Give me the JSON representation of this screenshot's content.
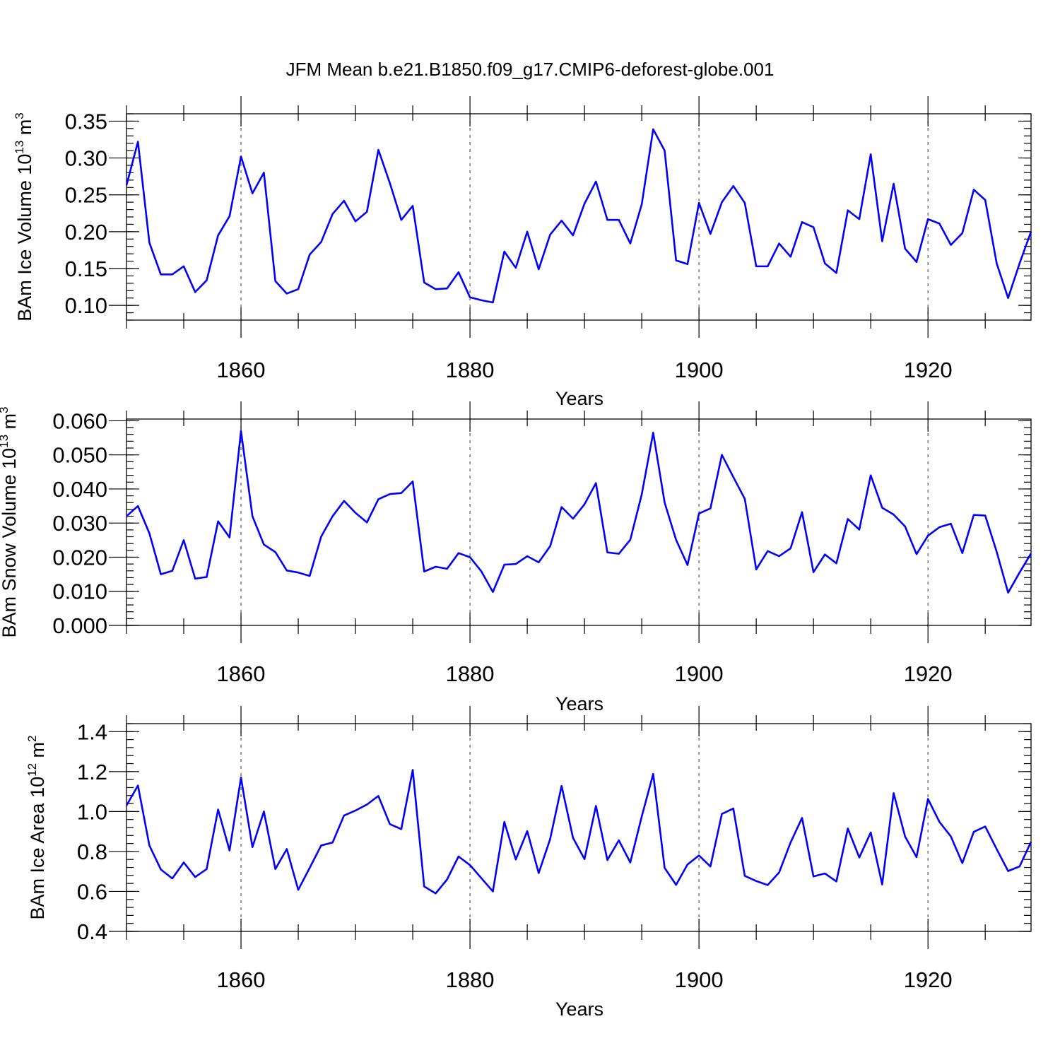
{
  "title": "JFM Mean b.e21.B1850.f09_g17.CMIP6-deforest-globe.001",
  "colors": {
    "line": "#0000ff",
    "axis": "#000000"
  },
  "chart_data": [
    {
      "type": "line",
      "name": "ice-volume",
      "ylabel_main": "BAm Ice Volume 10",
      "ylabel_exp": "13",
      "ylabel_unit": " m",
      "ylabel_unit_exp": "3",
      "xlabel": "Years",
      "xlim": [
        1850,
        1929
      ],
      "ylim": [
        0.08,
        0.36
      ],
      "xticks": [
        1860,
        1880,
        1900,
        1920
      ],
      "xtick_labels": [
        "1860",
        "1880",
        "1900",
        "1920"
      ],
      "yticks": [
        0.1,
        0.15,
        0.2,
        0.25,
        0.3,
        0.35
      ],
      "ytick_labels": [
        "0.10",
        "0.15",
        "0.20",
        "0.25",
        "0.30",
        "0.35"
      ],
      "yminor_step": 0.01,
      "grid_x": true,
      "x_start": 1850,
      "values": [
        0.263,
        0.322,
        0.185,
        0.142,
        0.142,
        0.153,
        0.118,
        0.134,
        0.195,
        0.221,
        0.302,
        0.252,
        0.28,
        0.133,
        0.116,
        0.122,
        0.169,
        0.186,
        0.224,
        0.242,
        0.214,
        0.227,
        0.311,
        0.266,
        0.216,
        0.235,
        0.131,
        0.122,
        0.123,
        0.145,
        0.111,
        0.107,
        0.104,
        0.173,
        0.151,
        0.2,
        0.149,
        0.196,
        0.215,
        0.195,
        0.238,
        0.268,
        0.216,
        0.216,
        0.184,
        0.237,
        0.339,
        0.31,
        0.161,
        0.156,
        0.239,
        0.197,
        0.24,
        0.262,
        0.239,
        0.153,
        0.153,
        0.184,
        0.166,
        0.213,
        0.206,
        0.157,
        0.144,
        0.229,
        0.217,
        0.305,
        0.187,
        0.265,
        0.177,
        0.159,
        0.217,
        0.211,
        0.182,
        0.198,
        0.257,
        0.243,
        0.157,
        0.11,
        0.157,
        0.2
      ]
    },
    {
      "type": "line",
      "name": "snow-volume",
      "ylabel_main": "BAm Snow Volume 10",
      "ylabel_exp": "13",
      "ylabel_unit": " m",
      "ylabel_unit_exp": "3",
      "xlabel": "Years",
      "xlim": [
        1850,
        1929
      ],
      "ylim": [
        0.0,
        0.0605
      ],
      "xticks": [
        1860,
        1880,
        1900,
        1920
      ],
      "xtick_labels": [
        "1860",
        "1880",
        "1900",
        "1920"
      ],
      "yticks": [
        0.0,
        0.01,
        0.02,
        0.03,
        0.04,
        0.05,
        0.06
      ],
      "ytick_labels": [
        "0.000",
        "0.010",
        "0.020",
        "0.030",
        "0.040",
        "0.050",
        "0.060"
      ],
      "yminor_step": 0.002,
      "grid_x": true,
      "x_start": 1850,
      "values": [
        0.032,
        0.035,
        0.027,
        0.015,
        0.016,
        0.025,
        0.0137,
        0.0142,
        0.0305,
        0.0258,
        0.057,
        0.032,
        0.0237,
        0.0215,
        0.0161,
        0.0155,
        0.0145,
        0.026,
        0.032,
        0.0365,
        0.033,
        0.0302,
        0.037,
        0.0385,
        0.0388,
        0.0422,
        0.0158,
        0.0172,
        0.0166,
        0.0212,
        0.02,
        0.0158,
        0.0098,
        0.0178,
        0.018,
        0.0203,
        0.0185,
        0.0232,
        0.0347,
        0.0313,
        0.0355,
        0.0417,
        0.0214,
        0.021,
        0.0251,
        0.0384,
        0.0565,
        0.036,
        0.0251,
        0.0177,
        0.0328,
        0.0343,
        0.05,
        0.0435,
        0.0371,
        0.0164,
        0.0218,
        0.0203,
        0.0226,
        0.0332,
        0.0156,
        0.0208,
        0.0182,
        0.0312,
        0.0281,
        0.044,
        0.0345,
        0.0325,
        0.029,
        0.0209,
        0.0263,
        0.0288,
        0.0298,
        0.0212,
        0.0324,
        0.0322,
        0.0216,
        0.0096,
        0.0155,
        0.0211
      ]
    },
    {
      "type": "line",
      "name": "ice-area",
      "ylabel_main": "BAm Ice Area 10",
      "ylabel_exp": "12",
      "ylabel_unit": " m",
      "ylabel_unit_exp": "2",
      "xlabel": "Years",
      "xlim": [
        1850,
        1929
      ],
      "ylim": [
        0.4,
        1.44
      ],
      "xticks": [
        1860,
        1880,
        1900,
        1920
      ],
      "xtick_labels": [
        "1860",
        "1880",
        "1900",
        "1920"
      ],
      "yticks": [
        0.4,
        0.6,
        0.8,
        1.0,
        1.2,
        1.4
      ],
      "ytick_labels": [
        "0.4",
        "0.6",
        "0.8",
        "1.0",
        "1.2",
        "1.4"
      ],
      "yminor_step": 0.04,
      "grid_x": true,
      "x_start": 1850,
      "values": [
        1.03,
        1.13,
        0.83,
        0.71,
        0.665,
        0.745,
        0.672,
        0.712,
        1.01,
        0.805,
        1.17,
        0.822,
        1.0,
        0.712,
        0.812,
        0.608,
        0.718,
        0.83,
        0.845,
        0.98,
        1.005,
        1.035,
        1.078,
        0.937,
        0.912,
        1.208,
        0.625,
        0.59,
        0.66,
        0.775,
        0.732,
        0.666,
        0.6,
        0.948,
        0.76,
        0.902,
        0.692,
        0.862,
        1.128,
        0.868,
        0.762,
        1.028,
        0.757,
        0.856,
        0.745,
        0.975,
        1.188,
        0.718,
        0.633,
        0.735,
        0.78,
        0.725,
        0.988,
        1.015,
        0.678,
        0.652,
        0.632,
        0.695,
        0.845,
        0.968,
        0.675,
        0.69,
        0.65,
        0.915,
        0.77,
        0.895,
        0.635,
        1.092,
        0.875,
        0.772,
        1.063,
        0.948,
        0.875,
        0.742,
        0.898,
        0.925,
        0.812,
        0.702,
        0.725,
        0.848
      ]
    }
  ]
}
